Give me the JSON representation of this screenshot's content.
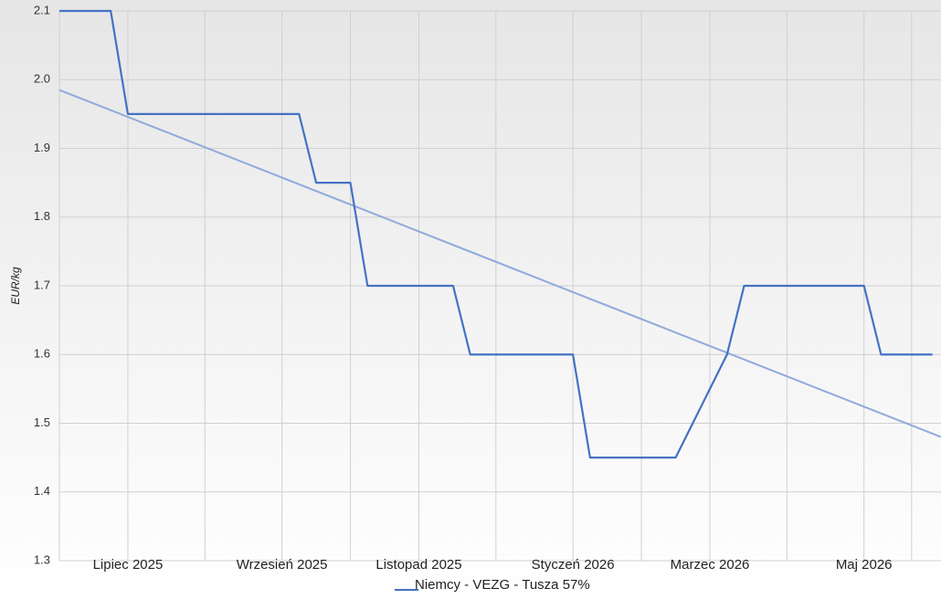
{
  "chart_data": {
    "type": "line",
    "y_label": "EUR/kg",
    "categories": [
      null,
      null,
      null,
      null,
      "Lipiec 2025",
      null,
      null,
      null,
      null,
      null,
      null,
      null,
      null,
      "Wrzesień 2025",
      null,
      null,
      null,
      null,
      null,
      null,
      null,
      "Listopad 2025",
      null,
      null,
      null,
      null,
      null,
      null,
      null,
      null,
      "Styczeń 2026",
      null,
      null,
      null,
      null,
      null,
      null,
      null,
      "Marzec 2026",
      null,
      null,
      null,
      null,
      null,
      null,
      null,
      null,
      "Maj 2026",
      null,
      null,
      null,
      null
    ],
    "series": [
      {
        "name": "Niemcy - VEZG - Tusza 57%",
        "color": "#4472c4",
        "values": [
          2.1,
          2.1,
          2.1,
          2.1,
          1.95,
          1.95,
          1.95,
          1.95,
          1.95,
          1.95,
          1.95,
          1.95,
          1.95,
          1.95,
          1.95,
          1.85,
          1.85,
          1.85,
          1.7,
          1.7,
          1.7,
          1.7,
          1.7,
          1.7,
          1.6,
          1.6,
          1.6,
          1.6,
          1.6,
          1.6,
          1.6,
          1.45,
          1.45,
          1.45,
          1.45,
          1.45,
          1.45,
          1.5,
          1.55,
          1.6,
          1.7,
          1.7,
          1.7,
          1.7,
          1.7,
          1.7,
          1.7,
          1.7,
          1.6,
          1.6,
          1.6,
          1.6
        ]
      }
    ],
    "trend": {
      "color": "#8faadc",
      "start": 1.985,
      "end": 1.48
    },
    "ylim": [
      1.3,
      2.1
    ],
    "yticks": [
      1.3,
      1.4,
      1.5,
      1.6,
      1.7,
      1.8,
      1.9,
      {
        "value": 2,
        "label": "2.0"
      },
      2.1
    ],
    "grid": true,
    "legend": "bottom"
  }
}
